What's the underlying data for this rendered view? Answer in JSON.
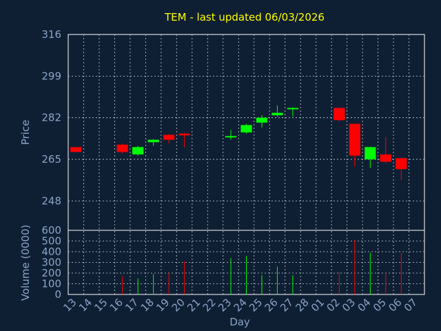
{
  "chart_data": {
    "type": "candlestick",
    "title": "TEM - last updated 06/03/2026",
    "price_panel": {
      "ylabel": "Price",
      "yticks": [
        "316",
        "299",
        "282",
        "265",
        "248"
      ],
      "ylim": [
        236,
        316
      ]
    },
    "volume_panel": {
      "ylabel": "Volume (0000)",
      "yticks": [
        "600",
        "500",
        "400",
        "300",
        "200",
        "100",
        "0"
      ],
      "ylim": [
        0,
        600
      ]
    },
    "xlabel": "Day",
    "x_tick_labels": [
      "13",
      "14",
      "15",
      "16",
      "17",
      "18",
      "19",
      "20",
      "21",
      "22",
      "23",
      "24",
      "25",
      "26",
      "27",
      "28",
      "01",
      "02",
      "03",
      "04",
      "05",
      "06",
      "07"
    ],
    "series": [
      {
        "day": "13",
        "open": 270.0,
        "close": 268.0,
        "high": 270.0,
        "low": 268.0,
        "volume": 0
      },
      {
        "day": "16",
        "open": 271.0,
        "close": 268.0,
        "high": 271.5,
        "low": 267.5,
        "volume": 170
      },
      {
        "day": "17",
        "open": 267.0,
        "close": 270.0,
        "high": 270.5,
        "low": 266.5,
        "volume": 150
      },
      {
        "day": "18",
        "open": 272.0,
        "close": 273.0,
        "high": 273.3,
        "low": 270.5,
        "volume": 190
      },
      {
        "day": "19",
        "open": 275.0,
        "close": 273.0,
        "high": 275.3,
        "low": 271.5,
        "volume": 200
      },
      {
        "day": "20",
        "open": 275.5,
        "close": 274.8,
        "high": 275.8,
        "low": 270.0,
        "volume": 310
      },
      {
        "day": "23",
        "open": 274.0,
        "close": 274.5,
        "high": 277.0,
        "low": 273.0,
        "volume": 340
      },
      {
        "day": "24",
        "open": 276.0,
        "close": 279.0,
        "high": 279.5,
        "low": 275.5,
        "volume": 360
      },
      {
        "day": "25",
        "open": 280.0,
        "close": 282.0,
        "high": 283.0,
        "low": 278.0,
        "volume": 180
      },
      {
        "day": "26",
        "open": 283.0,
        "close": 284.0,
        "high": 287.0,
        "low": 282.5,
        "volume": 260
      },
      {
        "day": "27",
        "open": 285.5,
        "close": 286.0,
        "high": 286.3,
        "low": 282.5,
        "volume": 180
      },
      {
        "day": "02",
        "open": 286.0,
        "close": 281.0,
        "high": 286.2,
        "low": 280.5,
        "volume": 210
      },
      {
        "day": "03",
        "open": 279.5,
        "close": 266.5,
        "high": 279.7,
        "low": 262.0,
        "volume": 510
      },
      {
        "day": "04",
        "open": 265.0,
        "close": 270.0,
        "high": 270.2,
        "low": 261.5,
        "volume": 390
      },
      {
        "day": "05",
        "open": 267.0,
        "close": 264.0,
        "high": 274.0,
        "low": 263.5,
        "volume": 200
      },
      {
        "day": "06",
        "open": 265.5,
        "close": 261.0,
        "high": 265.7,
        "low": 256.5,
        "volume": 390
      }
    ],
    "colors": {
      "up": "#00ff00",
      "down": "#ff0000",
      "title": "#ffff00",
      "axis_text": "#8aa4c8",
      "background": "#0f1f33"
    },
    "grid": true
  }
}
